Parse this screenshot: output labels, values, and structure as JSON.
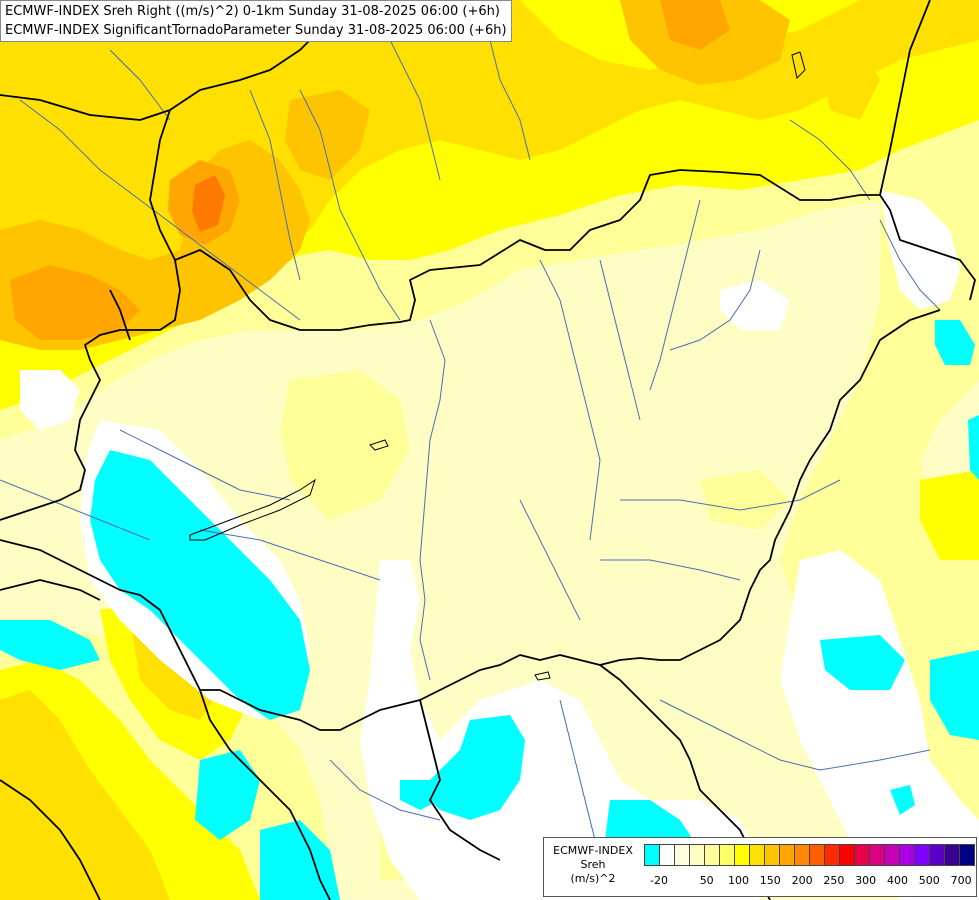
{
  "title": {
    "line1": "ECMWF-INDEX Sreh Right ((m/s)^2) 0-1km Sunday 31-08-2025 06:00 (+6h)",
    "line2": "ECMWF-INDEX SignificantTornadoParameter Sunday 31-08-2025 06:00 (+6h)"
  },
  "legend": {
    "caption_line1": "ECMWF-INDEX",
    "caption_line2": "Sreh",
    "caption_line3": "(m/s)^2",
    "colors": [
      "#00ffff",
      "#ffffff",
      "#ffffe0",
      "#fdfdc4",
      "#ffff99",
      "#ffff66",
      "#ffff00",
      "#ffe000",
      "#ffc400",
      "#ffa600",
      "#ff8800",
      "#ff5e00",
      "#ff2a00",
      "#ff0000",
      "#e8004a",
      "#dd0080",
      "#c800b8",
      "#a800e0",
      "#8000ff",
      "#5a00c8",
      "#3a0090",
      "#000080"
    ],
    "ticks": [
      {
        "label": "-20",
        "index": 0
      },
      {
        "label": "50",
        "index": 3
      },
      {
        "label": "100",
        "index": 5
      },
      {
        "label": "150",
        "index": 7
      },
      {
        "label": "200",
        "index": 9
      },
      {
        "label": "250",
        "index": 11
      },
      {
        "label": "300",
        "index": 13
      },
      {
        "label": "400",
        "index": 15
      },
      {
        "label": "500",
        "index": 17
      },
      {
        "label": "700",
        "index": 19
      }
    ]
  },
  "colors": {
    "background": "#fdfdc4",
    "light_yellow": "#ffff99",
    "yellow": "#ffff00",
    "gold": "#ffe000",
    "orange": "#ffc400",
    "dark_orange": "#ffa600",
    "red_orange": "#ff7a00",
    "cyan": "#00ffff",
    "white": "#ffffff",
    "border": "#000000",
    "river": "#4a6fb0"
  }
}
